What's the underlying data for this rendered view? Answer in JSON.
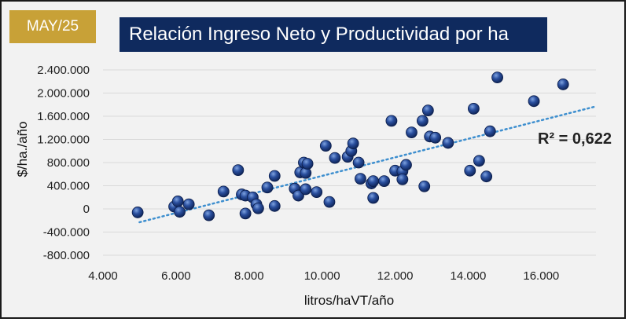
{
  "badge": {
    "text": "MAY/25"
  },
  "colors": {
    "frame_bg": "#f2f2f2",
    "badge": "#c8a137",
    "title_bg": "#0f2a5e",
    "grid": "#d9d9d9",
    "marker": "#1f3f8a",
    "trend": "#3e8fcf"
  },
  "chart_data": {
    "type": "scatter",
    "title": "Relación Ingreso Neto y Productividad por ha",
    "xlabel": "litros/haVT/año",
    "ylabel": "$/ha./año",
    "xlim": [
      4000,
      17500
    ],
    "ylim": [
      -800000,
      2400000
    ],
    "xticks": [
      4000,
      6000,
      8000,
      10000,
      12000,
      14000,
      16000
    ],
    "yticks": [
      -800000,
      -400000,
      0,
      400000,
      800000,
      1200000,
      1600000,
      2000000,
      2400000
    ],
    "x_tick_labels": [
      "4.000",
      "6.000",
      "8.000",
      "10.000",
      "12.000",
      "14.000",
      "16.000"
    ],
    "y_tick_labels": [
      "-800.000",
      "-400.000",
      "0",
      "400.000",
      "800.000",
      "1.200.000",
      "1.600.000",
      "2.000.000",
      "2.400.000"
    ],
    "grid": true,
    "trendline": {
      "type": "linear",
      "x": [
        5000,
        17500
      ],
      "y": [
        -230000,
        1770000
      ]
    },
    "annotation": "R² = 0,622",
    "points": [
      [
        4950,
        -60000
      ],
      [
        5950,
        40000
      ],
      [
        6050,
        130000
      ],
      [
        6100,
        -50000
      ],
      [
        6350,
        80000
      ],
      [
        6900,
        -110000
      ],
      [
        7300,
        300000
      ],
      [
        7700,
        670000
      ],
      [
        7800,
        250000
      ],
      [
        7900,
        230000
      ],
      [
        7900,
        -80000
      ],
      [
        8100,
        200000
      ],
      [
        8200,
        80000
      ],
      [
        8250,
        10000
      ],
      [
        8500,
        370000
      ],
      [
        8700,
        570000
      ],
      [
        8700,
        50000
      ],
      [
        9250,
        350000
      ],
      [
        9350,
        230000
      ],
      [
        9400,
        630000
      ],
      [
        9500,
        800000
      ],
      [
        9550,
        620000
      ],
      [
        9550,
        340000
      ],
      [
        9600,
        780000
      ],
      [
        9850,
        290000
      ],
      [
        10100,
        1090000
      ],
      [
        10200,
        120000
      ],
      [
        10350,
        880000
      ],
      [
        10700,
        900000
      ],
      [
        10800,
        1000000
      ],
      [
        10850,
        1130000
      ],
      [
        11000,
        800000
      ],
      [
        11050,
        520000
      ],
      [
        11350,
        440000
      ],
      [
        11400,
        480000
      ],
      [
        11400,
        190000
      ],
      [
        11700,
        480000
      ],
      [
        11900,
        1520000
      ],
      [
        12000,
        660000
      ],
      [
        12200,
        650000
      ],
      [
        12200,
        510000
      ],
      [
        12300,
        760000
      ],
      [
        12450,
        1320000
      ],
      [
        12750,
        1520000
      ],
      [
        12800,
        390000
      ],
      [
        12900,
        1700000
      ],
      [
        12950,
        1250000
      ],
      [
        13100,
        1230000
      ],
      [
        13450,
        1140000
      ],
      [
        14050,
        660000
      ],
      [
        14150,
        1730000
      ],
      [
        14300,
        830000
      ],
      [
        14500,
        560000
      ],
      [
        14600,
        1340000
      ],
      [
        14800,
        2270000
      ],
      [
        15800,
        1860000
      ],
      [
        16600,
        2150000
      ]
    ]
  }
}
